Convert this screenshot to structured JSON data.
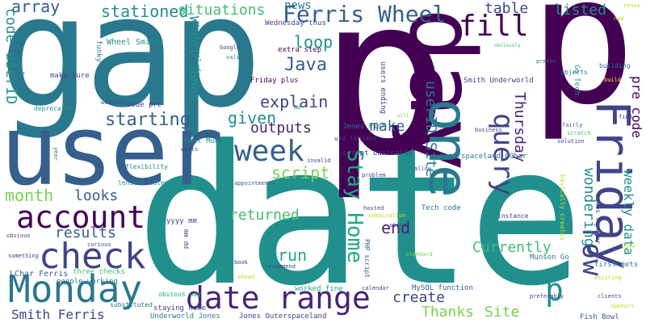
{
  "words": {
    "date": "date",
    "p": "p",
    "p2": "p",
    "gap": "gap",
    "user": "user",
    "day": "day",
    "one": "one",
    "friday": "Friday",
    "monday": "Monday",
    "date_range": "date range",
    "check": "check",
    "account": "account",
    "week": "week",
    "fill": "fill",
    "ferris_wheel": "Ferris Wheel",
    "query": "query",
    "row": "row",
    "stay_home": "Stay Home",
    "p3": "p",
    "array": "array",
    "stationed": "stationed",
    "situations": "situations",
    "news": "news",
    "table": "table",
    "listed": "listed",
    "loop": "loop",
    "java": "Java",
    "explain": "explain",
    "starting": "starting",
    "given": "given",
    "outputs": "outputs",
    "make": "make",
    "script": "script",
    "month": "month",
    "looks": "looks",
    "returned": "returned",
    "results": "results",
    "end": "end",
    "run": "run",
    "currently": "Currently",
    "create": "create",
    "thanks": "Thanks",
    "site": "Site",
    "smith_ferris": "Smith Ferris",
    "userid_site": "userID Site",
    "code_userid": "code userID",
    "wheel_jones": "Wheel Jones",
    "thursday": "Thursday",
    "wondering": "wondering",
    "weekly_data": "weekly data",
    "pre_code": "pre code",
    "wheel_smith": "Wheel Smith",
    "funky_script": "funky script",
    "several_days": "several days",
    "wednesday_thus": "Wednesday thus",
    "extra_step": "extra step",
    "friday_plus": "Friday plus",
    "users_ending": "users ending",
    "smith_underworld": "Smith Underworld",
    "go_tech": "Go Tech",
    "objects": "objects",
    "building": "building",
    "make_sure": "make sure",
    "code_pre": "code pre",
    "deprecated": "deprecated",
    "website": "website",
    "google": "Google",
    "valid": "valid",
    "prefer": "prefer",
    "obviously": "obviously",
    "reuse": "reuse",
    "now": "now",
    "top": "top",
    "bowl_munson": "Bowl Munson",
    "jones_fish": "Jones Fish",
    "use_lenient": "use lenient",
    "script_basically": "script basically",
    "outerspaceland_lchar": "Outerspaceland LChar",
    "business": "business",
    "solution": "solution",
    "fairly": "fairly",
    "scratch": "scratch",
    "find": "find",
    "will": "will",
    "go": "Go",
    "flexibility": "flexibility",
    "year": "year",
    "wants": "wants",
    "invalid": "invalid",
    "problem": "problem",
    "allow": "allow",
    "lenient_calendar": "lenient calendar",
    "appointments": "appointments",
    "yyyy_mm": "yyyy mm",
    "mm_dd": "mm dd",
    "obvious": "obvious",
    "curious": "curious",
    "something": "something",
    "lchar_ferris": "LChar Ferris",
    "three_checks": "three checks",
    "people_working": "people working",
    "substituted": "substituted",
    "obvious_way": "obvious way",
    "staying_home": "staying home",
    "underworld_jones": "Underworld Jones",
    "jones_outerspaceland": "Jones Outerspaceland",
    "book": "book",
    "recommend": "recommend",
    "ahead": "ahead",
    "calendar": "calendar",
    "worked_fine": "worked fine",
    "mysql_function": "MySQL function",
    "php_script": "PHP script",
    "tech_code": "Tech code",
    "combination": "combination",
    "hosted": "hosted",
    "start": "start",
    "standard": "standard",
    "instance": "instance",
    "basically_creates": "basically creates",
    "takes_forever": "takes forever",
    "munson_go": "Munson Go",
    "first_gets": "first gets",
    "clients": "clients",
    "appears": "appears",
    "existing": "existing",
    "wife": "wife",
    "preferably": "preferably",
    "fish_bowl": "Fish Bowl",
    "build": "build"
  },
  "palette": [
    "#440154",
    "#482475",
    "#414487",
    "#355f8d",
    "#2a788e",
    "#21908d",
    "#22a884",
    "#42be71",
    "#7ad151",
    "#bddf26",
    "#fde725"
  ]
}
